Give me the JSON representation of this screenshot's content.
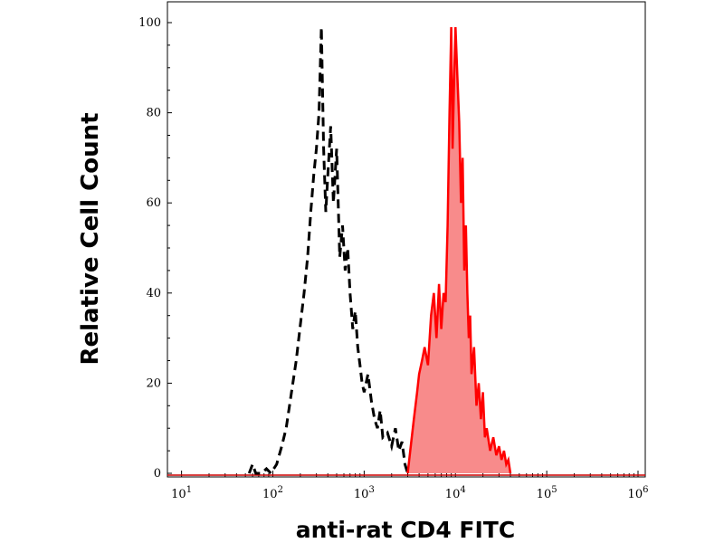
{
  "chart_data": {
    "type": "area",
    "xlabel": "anti-rat CD4 FITC",
    "ylabel": "Relative Cell Count",
    "x_scale": "log",
    "xlim": [
      7,
      1200000
    ],
    "ylim": [
      0,
      100
    ],
    "x_ticks": [
      {
        "value": 10,
        "base": "10",
        "exp": "1"
      },
      {
        "value": 100,
        "base": "10",
        "exp": "2"
      },
      {
        "value": 1000,
        "base": "10",
        "exp": "3"
      },
      {
        "value": 10000,
        "base": "10",
        "exp": "4"
      },
      {
        "value": 100000,
        "base": "10",
        "exp": "5"
      },
      {
        "value": 1000000,
        "base": "10",
        "exp": "6"
      }
    ],
    "y_ticks": [
      "0",
      "20",
      "40",
      "60",
      "80",
      "100"
    ],
    "grid": false,
    "series": [
      {
        "style": "dashed",
        "color": "#000000",
        "x": [
          55,
          60,
          65,
          75,
          85,
          95,
          110,
          125,
          140,
          160,
          180,
          200,
          220,
          240,
          260,
          280,
          300,
          320,
          340,
          360,
          380,
          400,
          430,
          460,
          500,
          540,
          580,
          620,
          660,
          700,
          750,
          800,
          850,
          900,
          950,
          1000,
          1100,
          1200,
          1300,
          1400,
          1500,
          1600,
          1800,
          2000,
          2200,
          2400,
          2600,
          2800,
          3000
        ],
        "y": [
          0,
          2,
          0,
          0,
          1,
          0,
          2,
          6,
          10,
          18,
          25,
          33,
          40,
          48,
          58,
          66,
          72,
          80,
          99,
          72,
          58,
          66,
          77,
          60,
          72,
          48,
          55,
          45,
          50,
          40,
          32,
          36,
          28,
          24,
          20,
          18,
          22,
          16,
          12,
          10,
          14,
          8,
          9,
          6,
          10,
          5,
          7,
          2,
          0
        ]
      },
      {
        "style": "filled",
        "color": "#ff0000",
        "fill": "#f88b8b",
        "x": [
          3000,
          3200,
          3500,
          3800,
          4000,
          4300,
          4600,
          5000,
          5400,
          5800,
          6200,
          6600,
          7000,
          7400,
          7800,
          8200,
          8600,
          9000,
          9300,
          9600,
          10000,
          10500,
          11000,
          11500,
          12000,
          12500,
          13000,
          13500,
          14000,
          14500,
          15000,
          16000,
          17000,
          18000,
          19000,
          20000,
          21000,
          22000,
          24000,
          26000,
          28000,
          30000,
          32000,
          34000,
          36000,
          38000,
          40000
        ],
        "y": [
          0,
          5,
          12,
          18,
          22,
          25,
          28,
          24,
          35,
          40,
          30,
          42,
          32,
          40,
          38,
          55,
          80,
          99,
          72,
          85,
          99,
          88,
          78,
          60,
          70,
          45,
          55,
          40,
          30,
          35,
          22,
          28,
          15,
          20,
          12,
          18,
          8,
          10,
          5,
          8,
          4,
          6,
          3,
          5,
          2,
          3,
          0
        ]
      }
    ]
  }
}
